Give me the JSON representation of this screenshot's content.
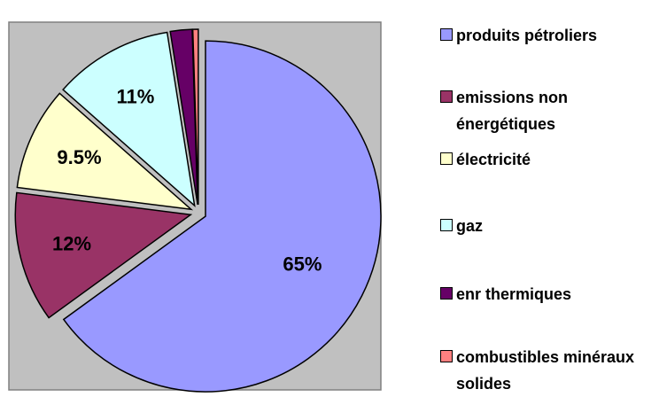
{
  "chart_data": {
    "type": "pie",
    "categories": [
      "produits pétroliers",
      "emissions non énergétiques",
      "électricité",
      "gaz",
      "enr thermiques",
      "combustibles minéraux solides"
    ],
    "values": [
      65,
      12,
      9.5,
      11,
      2,
      0.5
    ],
    "value_labels": [
      "65%",
      "12%",
      "9.5%",
      "11%",
      null,
      null
    ],
    "colors": [
      "#9999ff",
      "#993366",
      "#ffffcc",
      "#ccffff",
      "#660066",
      "#ff8080"
    ],
    "legend": "right"
  }
}
